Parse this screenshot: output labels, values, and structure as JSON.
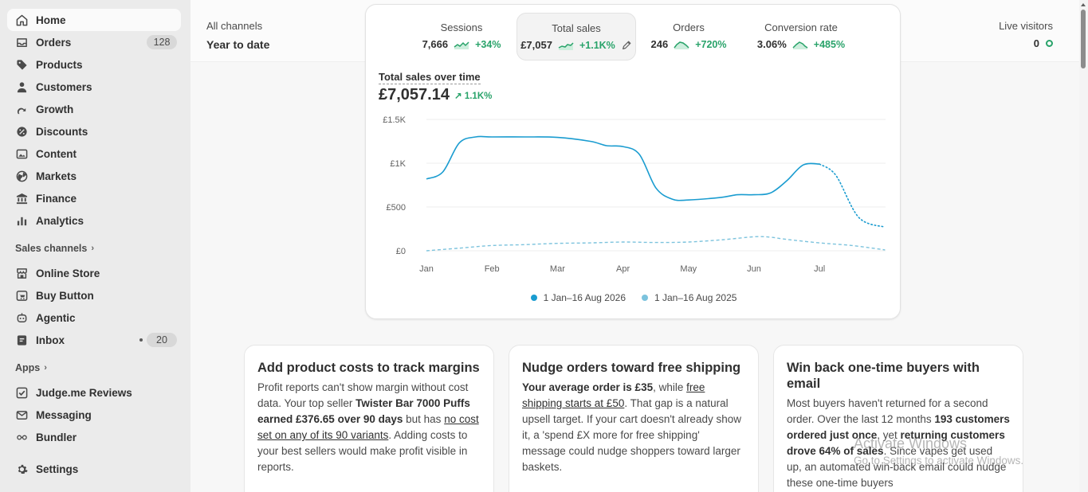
{
  "sidebar": {
    "items": [
      {
        "label": "Home",
        "icon": "home-icon"
      },
      {
        "label": "Orders",
        "icon": "orders-icon",
        "badge": "128"
      },
      {
        "label": "Products",
        "icon": "tag-icon"
      },
      {
        "label": "Customers",
        "icon": "person-icon"
      },
      {
        "label": "Growth",
        "icon": "growth-icon"
      },
      {
        "label": "Discounts",
        "icon": "discount-icon"
      },
      {
        "label": "Content",
        "icon": "image-icon"
      },
      {
        "label": "Markets",
        "icon": "globe-icon"
      },
      {
        "label": "Finance",
        "icon": "bank-icon"
      },
      {
        "label": "Analytics",
        "icon": "bar-chart-icon"
      }
    ],
    "sales_channels_label": "Sales channels",
    "channels": [
      {
        "label": "Online Store",
        "icon": "store-icon"
      },
      {
        "label": "Buy Button",
        "icon": "buy-button-icon"
      },
      {
        "label": "Agentic",
        "icon": "agent-icon"
      },
      {
        "label": "Inbox",
        "icon": "inbox-icon",
        "badge": "20"
      }
    ],
    "apps_label": "Apps",
    "apps": [
      {
        "label": "Judge.me Reviews",
        "icon": "checkbox-icon"
      },
      {
        "label": "Messaging",
        "icon": "mail-icon"
      },
      {
        "label": "Bundler",
        "icon": "link-icon"
      }
    ],
    "settings_label": "Settings"
  },
  "topbar": {
    "channel": "All channels",
    "period": "Year to date",
    "live_label": "Live visitors",
    "live_value": "0"
  },
  "metrics": [
    {
      "label": "Sessions",
      "value": "7,666",
      "delta": "+34%"
    },
    {
      "label": "Total sales",
      "value": "£7,057",
      "delta": "+1.1K%"
    },
    {
      "label": "Orders",
      "value": "246",
      "delta": "+720%"
    },
    {
      "label": "Conversion rate",
      "value": "3.06%",
      "delta": "+485%"
    }
  ],
  "chart": {
    "title": "Total sales over time",
    "total": "£7,057.14",
    "delta": "1.1K%"
  },
  "chart_data": {
    "type": "line",
    "x": [
      "Jan",
      "Feb",
      "Mar",
      "Apr",
      "May",
      "Jun",
      "Jul"
    ],
    "yticks": [
      "£0",
      "£500",
      "£1K",
      "£1.5K"
    ],
    "ylim": [
      0,
      1500
    ],
    "grid": true,
    "legend_position": "bottom",
    "series": [
      {
        "name": "1 Jan–16 Aug 2026",
        "color": "#1a9cd0",
        "points": [
          [
            0.0,
            820
          ],
          [
            0.25,
            900
          ],
          [
            0.5,
            1230
          ],
          [
            0.75,
            1300
          ],
          [
            1.0,
            1300
          ],
          [
            1.5,
            1300
          ],
          [
            2.0,
            1295
          ],
          [
            2.5,
            1250
          ],
          [
            2.75,
            1200
          ],
          [
            3.0,
            1190
          ],
          [
            3.25,
            1100
          ],
          [
            3.5,
            720
          ],
          [
            3.75,
            590
          ],
          [
            4.0,
            580
          ],
          [
            4.5,
            610
          ],
          [
            4.75,
            640
          ],
          [
            5.0,
            640
          ],
          [
            5.25,
            660
          ],
          [
            5.5,
            800
          ],
          [
            5.75,
            980
          ],
          [
            6.0,
            990
          ]
        ],
        "projection": [
          [
            6.0,
            990
          ],
          [
            6.25,
            860
          ],
          [
            6.6,
            380
          ],
          [
            7.0,
            270
          ]
        ]
      },
      {
        "name": "1 Jan–16 Aug 2025",
        "color": "#7cc3dd",
        "dashed": true,
        "points": [
          [
            0.0,
            0
          ],
          [
            0.5,
            30
          ],
          [
            1.0,
            60
          ],
          [
            1.5,
            70
          ],
          [
            2.0,
            85
          ],
          [
            2.5,
            90
          ],
          [
            3.0,
            100
          ],
          [
            3.5,
            95
          ],
          [
            4.0,
            100
          ],
          [
            4.5,
            125
          ],
          [
            5.0,
            160
          ],
          [
            5.25,
            155
          ],
          [
            5.5,
            130
          ],
          [
            6.0,
            90
          ],
          [
            6.5,
            60
          ],
          [
            7.0,
            10
          ]
        ]
      }
    ]
  },
  "cards": [
    {
      "title": "Add product costs to track margins",
      "parts": [
        {
          "t": "Profit reports can't show margin without cost data. Your top seller "
        },
        {
          "t": "Twister Bar 7000 Puffs earned £376.65 over 90 days",
          "b": true
        },
        {
          "t": " but has "
        },
        {
          "t": "no cost set on any of its 90 variants",
          "u": true
        },
        {
          "t": ". Adding costs to your best sellers would make profit visible in reports."
        }
      ]
    },
    {
      "title": "Nudge orders toward free shipping",
      "parts": [
        {
          "t": "Your average order is £35",
          "b": true
        },
        {
          "t": ", while "
        },
        {
          "t": "free shipping starts at £50",
          "u": true
        },
        {
          "t": ". That gap is a natural upsell target. If your cart doesn't already show it, a 'spend £X more for free shipping' message could nudge shoppers toward larger baskets."
        }
      ]
    },
    {
      "title": "Win back one-time buyers with email",
      "parts": [
        {
          "t": "Most buyers haven't returned for a second order. Over the last 12 months "
        },
        {
          "t": "193 customers ordered just once",
          "b": true
        },
        {
          "t": ", yet "
        },
        {
          "t": "returning customers drove 64% of sales",
          "b": true
        },
        {
          "t": ". Since vapes get used up, an automated win-back email could nudge these one-time buyers"
        }
      ]
    }
  ],
  "watermark": {
    "line1": "Activate Windows",
    "line2": "Go to Settings to activate Windows."
  }
}
